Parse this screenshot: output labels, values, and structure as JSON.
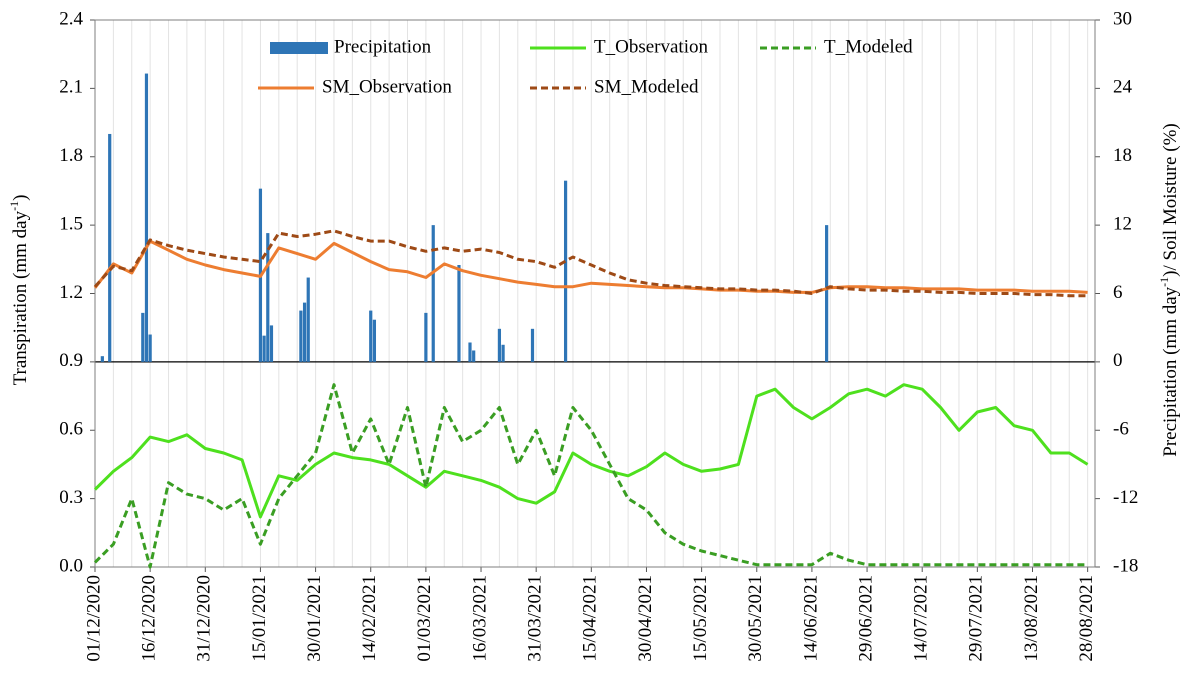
{
  "chart_data": {
    "type": "combo",
    "ylabel": {
      "text": "Transpiration (mm day",
      "sup": "-1",
      "tail": ")"
    },
    "y2label": {
      "text": "Precipitation (mm day",
      "sup": "-1",
      "tail": ")/ Soil Moisture (%)"
    },
    "xlim": [
      "01/12/2020",
      "30/08/2021"
    ],
    "xticks": [
      "01/12/2020",
      "16/12/2020",
      "31/12/2020",
      "15/01/2021",
      "30/01/2021",
      "14/02/2021",
      "01/03/2021",
      "16/03/2021",
      "31/03/2021",
      "15/04/2021",
      "30/04/2021",
      "15/05/2021",
      "30/05/2021",
      "14/06/2021",
      "29/06/2021",
      "14/07/2021",
      "29/07/2021",
      "13/08/2021",
      "28/08/2021"
    ],
    "ylim": [
      0,
      2.4
    ],
    "yticks": [
      {
        "value": 0,
        "label": "0.0"
      },
      0.3,
      0.6,
      0.9,
      1.2,
      1.5,
      1.8,
      2.1,
      2.4
    ],
    "y2lim": [
      -18,
      30
    ],
    "y2ticks": [
      -18,
      -12,
      -6,
      0,
      6,
      12,
      18,
      24,
      30
    ],
    "grid": true,
    "x": [
      "01/12/2020",
      "06/12/2020",
      "11/12/2020",
      "16/12/2020",
      "21/12/2020",
      "26/12/2020",
      "31/12/2020",
      "05/01/2021",
      "10/01/2021",
      "15/01/2021",
      "20/01/2021",
      "25/01/2021",
      "30/01/2021",
      "04/02/2021",
      "09/02/2021",
      "14/02/2021",
      "19/02/2021",
      "24/02/2021",
      "01/03/2021",
      "06/03/2021",
      "11/03/2021",
      "16/03/2021",
      "21/03/2021",
      "26/03/2021",
      "31/03/2021",
      "05/04/2021",
      "10/04/2021",
      "15/04/2021",
      "20/04/2021",
      "25/04/2021",
      "30/04/2021",
      "05/05/2021",
      "10/05/2021",
      "15/05/2021",
      "20/05/2021",
      "25/05/2021",
      "30/05/2021",
      "04/06/2021",
      "09/06/2021",
      "14/06/2021",
      "19/06/2021",
      "24/06/2021",
      "29/06/2021",
      "04/07/2021",
      "09/07/2021",
      "14/07/2021",
      "19/07/2021",
      "24/07/2021",
      "29/07/2021",
      "03/08/2021",
      "08/08/2021",
      "13/08/2021",
      "18/08/2021",
      "23/08/2021",
      "28/08/2021"
    ],
    "series": [
      {
        "name": "Precipitation",
        "type": "bar",
        "axis": "y2",
        "color": "#2e75b6",
        "x": [
          "03/12/2020",
          "05/12/2020",
          "14/12/2020",
          "15/12/2020",
          "16/12/2020",
          "15/01/2021",
          "16/01/2021",
          "17/01/2021",
          "18/01/2021",
          "26/01/2021",
          "27/01/2021",
          "28/01/2021",
          "14/02/2021",
          "15/02/2021",
          "01/03/2021",
          "03/03/2021",
          "10/03/2021",
          "13/03/2021",
          "14/03/2021",
          "21/03/2021",
          "22/03/2021",
          "30/03/2021",
          "08/04/2021",
          "18/06/2021"
        ],
        "values": [
          0.5,
          20,
          4.3,
          25.3,
          2.4,
          15.2,
          2.3,
          11.3,
          3.2,
          4.5,
          5.2,
          7.4,
          4.5,
          3.7,
          4.3,
          12,
          8.5,
          1.7,
          1.0,
          2.9,
          1.5,
          2.9,
          15.9,
          12
        ]
      },
      {
        "name": "T_Observation",
        "type": "line",
        "color": "#4ee01e",
        "dash": false,
        "values": [
          0.34,
          0.42,
          0.48,
          0.57,
          0.55,
          0.58,
          0.52,
          0.5,
          0.47,
          0.22,
          0.4,
          0.38,
          0.45,
          0.5,
          0.48,
          0.47,
          0.45,
          0.4,
          0.35,
          0.42,
          0.4,
          0.38,
          0.35,
          0.3,
          0.28,
          0.33,
          0.5,
          0.45,
          0.42,
          0.4,
          0.44,
          0.5,
          0.45,
          0.42,
          0.43,
          0.45,
          0.75,
          0.78,
          0.7,
          0.65,
          0.7,
          0.76,
          0.78,
          0.75,
          0.8,
          0.78,
          0.7,
          0.6,
          0.68,
          0.7,
          0.62,
          0.6,
          0.5,
          0.5,
          0.45
        ]
      },
      {
        "name": "T_Modeled",
        "type": "line",
        "color": "#3a9e23",
        "dash": true,
        "values": [
          0.02,
          0.1,
          0.3,
          0.0,
          0.37,
          0.32,
          0.3,
          0.25,
          0.3,
          0.1,
          0.3,
          0.4,
          0.5,
          0.8,
          0.5,
          0.65,
          0.45,
          0.7,
          0.35,
          0.7,
          0.55,
          0.6,
          0.7,
          0.45,
          0.6,
          0.4,
          0.7,
          0.6,
          0.45,
          0.3,
          0.25,
          0.15,
          0.1,
          0.07,
          0.05,
          0.03,
          0.01,
          0.01,
          0.01,
          0.01,
          0.06,
          0.03,
          0.01,
          0.01,
          0.01,
          0.01,
          0.01,
          0.01,
          0.01,
          0.01,
          0.01,
          0.01,
          0.01,
          0.01,
          0.01
        ]
      },
      {
        "name": "SM_Observation",
        "type": "line",
        "axis": "y2",
        "color": "#ed7d31",
        "dash": false,
        "values": [
          6.5,
          8.6,
          7.8,
          10.6,
          9.8,
          9.0,
          8.5,
          8.1,
          7.8,
          7.5,
          10.0,
          9.5,
          9.0,
          10.4,
          9.6,
          8.8,
          8.1,
          7.9,
          7.4,
          8.6,
          8.0,
          7.6,
          7.3,
          7.0,
          6.8,
          6.6,
          6.6,
          6.9,
          6.8,
          6.7,
          6.6,
          6.5,
          6.5,
          6.4,
          6.3,
          6.3,
          6.2,
          6.2,
          6.1,
          6.1,
          6.5,
          6.6,
          6.6,
          6.5,
          6.5,
          6.4,
          6.4,
          6.4,
          6.3,
          6.3,
          6.3,
          6.2,
          6.2,
          6.2,
          6.1
        ]
      },
      {
        "name": "SM_Modeled",
        "type": "line",
        "axis": "y2",
        "color": "#9e4a16",
        "dash": true,
        "values": [
          6.6,
          8.4,
          8.0,
          10.7,
          10.2,
          9.8,
          9.5,
          9.2,
          9.0,
          8.8,
          11.3,
          11.0,
          11.2,
          11.5,
          11.0,
          10.6,
          10.6,
          10.1,
          9.7,
          10.0,
          9.7,
          9.9,
          9.6,
          9.0,
          8.8,
          8.3,
          9.2,
          8.5,
          7.8,
          7.2,
          6.9,
          6.7,
          6.6,
          6.5,
          6.4,
          6.4,
          6.3,
          6.3,
          6.2,
          6.0,
          6.6,
          6.4,
          6.3,
          6.3,
          6.2,
          6.2,
          6.1,
          6.1,
          6.0,
          6.0,
          6.0,
          5.9,
          5.9,
          5.8,
          5.8
        ]
      }
    ]
  }
}
